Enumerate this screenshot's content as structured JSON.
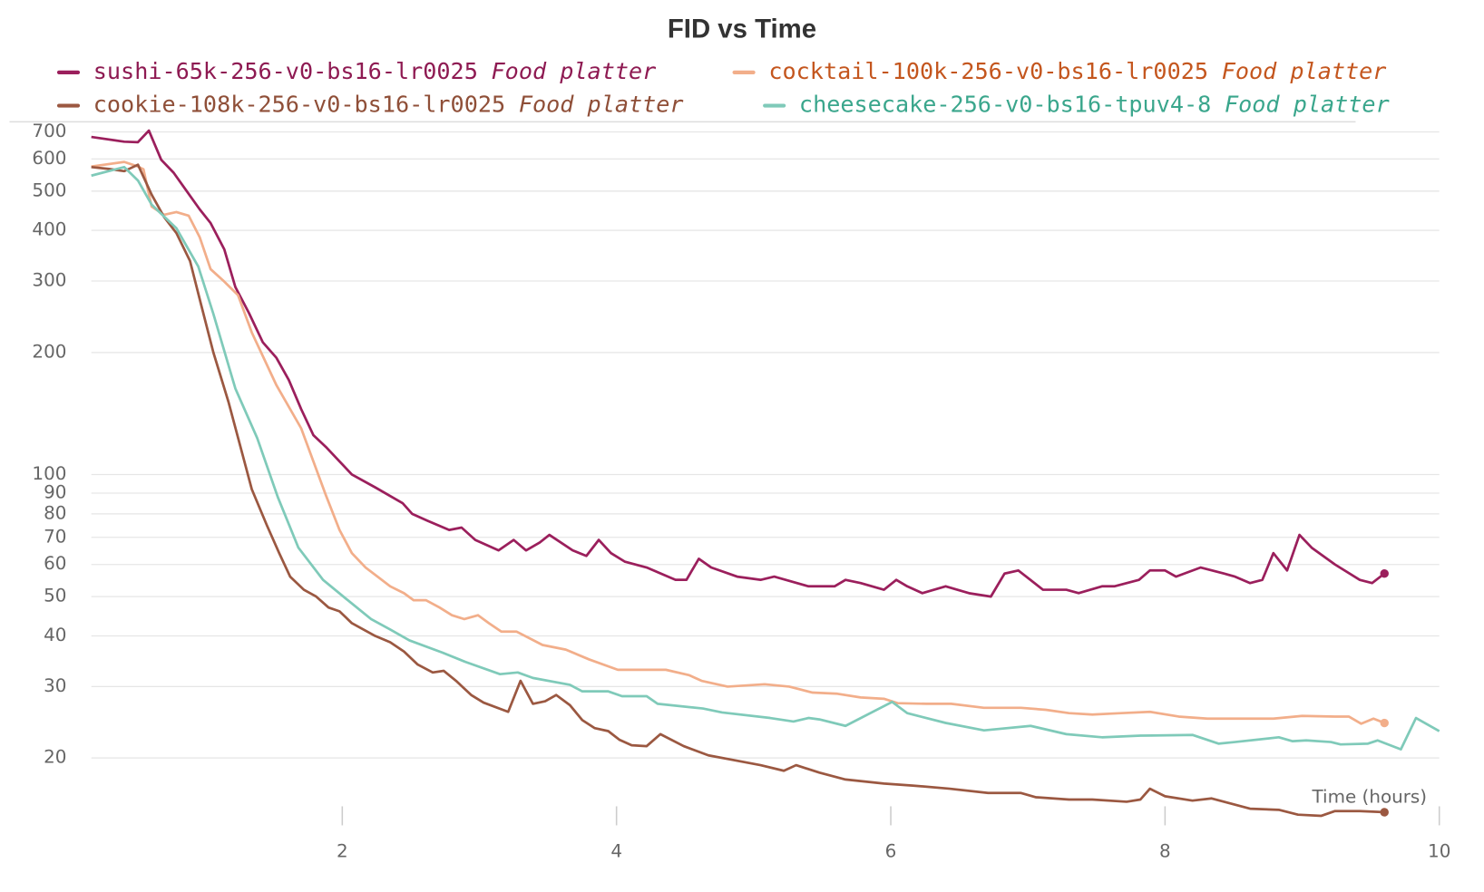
{
  "chart_data": {
    "type": "line",
    "title": "FID vs Time",
    "x_label": "Time (hours)",
    "log_y": true,
    "grid": true,
    "xlim": [
      0.17,
      10
    ],
    "xticks": [
      2,
      4,
      6,
      8,
      10
    ],
    "ylim": [
      13.5,
      741
    ],
    "yticks": [
      20,
      30,
      40,
      50,
      60,
      70,
      80,
      90,
      100,
      200,
      300,
      400,
      500,
      600,
      700
    ],
    "series": [
      {
        "name": "sushi-65k-256-v0-bs16-lr0025",
        "group": "Food platter",
        "color": "#9b1f5c",
        "label_color": "#8e1a52",
        "end_marker": true,
        "x": [
          0.17,
          0.41,
          0.51,
          0.59,
          0.68,
          0.77,
          0.86,
          0.96,
          1.04,
          1.14,
          1.22,
          1.32,
          1.42,
          1.52,
          1.61,
          1.7,
          1.79,
          1.88,
          2.07,
          2.24,
          2.44,
          2.51,
          2.62,
          2.78,
          2.87,
          2.97,
          3.14,
          3.25,
          3.34,
          3.44,
          3.51,
          3.68,
          3.78,
          3.87,
          3.96,
          4.06,
          4.22,
          4.43,
          4.51,
          4.6,
          4.69,
          4.88,
          5.05,
          5.15,
          5.4,
          5.59,
          5.67,
          5.78,
          5.95,
          6.04,
          6.12,
          6.23,
          6.4,
          6.57,
          6.73,
          6.83,
          6.93,
          7.11,
          7.28,
          7.37,
          7.54,
          7.63,
          7.81,
          7.89,
          8.0,
          8.08,
          8.26,
          8.43,
          8.51,
          8.62,
          8.71,
          8.79,
          8.89,
          8.98,
          9.07,
          9.24,
          9.42,
          9.51,
          9.6
        ],
        "values": [
          680,
          662,
          660,
          705,
          597,
          555,
          503,
          451,
          417,
          359,
          290,
          250,
          212,
          194,
          171,
          145,
          125,
          117,
          100,
          93,
          85,
          80,
          77,
          73,
          74,
          69,
          65,
          69,
          65,
          68,
          71,
          65,
          63,
          69,
          64,
          61,
          59,
          55,
          55,
          62,
          59,
          56,
          55,
          56,
          53,
          53,
          55,
          54,
          52,
          55,
          53,
          51,
          53,
          51,
          50,
          57,
          58,
          52,
          52,
          51,
          53,
          53,
          55,
          58,
          58,
          56,
          59,
          57,
          56,
          54,
          55,
          64,
          58,
          71,
          66,
          60,
          55,
          54,
          57
        ]
      },
      {
        "name": "cocktail-100k-256-v0-bs16-lr0025",
        "group": "Food platter",
        "color": "#f2ae8a",
        "label_color": "#c4561e",
        "end_marker": true,
        "x": [
          0.17,
          0.41,
          0.51,
          0.55,
          0.61,
          0.7,
          0.79,
          0.88,
          0.96,
          1.04,
          1.14,
          1.24,
          1.34,
          1.52,
          1.7,
          1.88,
          1.98,
          2.07,
          2.17,
          2.35,
          2.45,
          2.52,
          2.61,
          2.71,
          2.8,
          2.89,
          2.99,
          3.07,
          3.16,
          3.27,
          3.46,
          3.63,
          3.8,
          4.01,
          4.18,
          4.36,
          4.53,
          4.62,
          4.81,
          5.08,
          5.26,
          5.43,
          5.61,
          5.78,
          5.95,
          6.05,
          6.26,
          6.44,
          6.68,
          6.95,
          7.13,
          7.3,
          7.47,
          7.68,
          7.89,
          8.1,
          8.31,
          8.55,
          8.79,
          9.0,
          9.24,
          9.34,
          9.43,
          9.52,
          9.6
        ],
        "values": [
          575,
          590,
          575,
          566,
          458,
          437,
          444,
          435,
          385,
          321,
          299,
          277,
          224,
          166,
          130,
          89,
          73,
          64,
          59,
          53,
          51,
          49,
          49,
          47,
          45,
          44,
          45,
          43,
          41,
          41,
          38,
          37,
          35,
          33,
          33,
          33,
          32,
          31,
          30,
          30.4,
          30,
          29,
          28.8,
          28.2,
          28,
          27.3,
          27.2,
          27.2,
          26.6,
          26.6,
          26.3,
          25.8,
          25.6,
          25.8,
          26,
          25.3,
          25,
          25,
          25,
          25.4,
          25.3,
          25.3,
          24.3,
          25,
          24.4
        ]
      },
      {
        "name": "cookie-108k-256-v0-bs16-lr0025",
        "group": "Food platter",
        "color": "#9b5841",
        "label_color": "#8f4f38",
        "end_marker": true,
        "x": [
          0.17,
          0.3,
          0.41,
          0.51,
          0.61,
          0.7,
          0.79,
          0.89,
          0.97,
          1.06,
          1.17,
          1.34,
          1.45,
          1.54,
          1.62,
          1.72,
          1.81,
          1.9,
          1.98,
          2.07,
          2.24,
          2.35,
          2.45,
          2.55,
          2.66,
          2.74,
          2.83,
          2.94,
          3.03,
          3.21,
          3.3,
          3.39,
          3.48,
          3.56,
          3.66,
          3.75,
          3.84,
          3.94,
          4.02,
          4.11,
          4.22,
          4.32,
          4.49,
          4.67,
          4.84,
          5.05,
          5.22,
          5.31,
          5.48,
          5.67,
          5.95,
          6.16,
          6.43,
          6.71,
          6.95,
          7.06,
          7.3,
          7.47,
          7.72,
          7.82,
          7.89,
          8.0,
          8.2,
          8.34,
          8.62,
          8.83,
          8.97,
          9.14,
          9.24,
          9.42,
          9.6
        ],
        "values": [
          573,
          567,
          560,
          581,
          490,
          432,
          394,
          336,
          263,
          200,
          151,
          92,
          75,
          64,
          56,
          52,
          50,
          47,
          46,
          43,
          40,
          38.6,
          36.6,
          34,
          32.5,
          32.8,
          31,
          28.6,
          27.4,
          26,
          31,
          27.2,
          27.6,
          28.6,
          27,
          24.8,
          23.7,
          23.3,
          22.2,
          21.5,
          21.4,
          22.9,
          21.4,
          20.3,
          19.8,
          19.2,
          18.6,
          19.2,
          18.4,
          17.7,
          17.3,
          17.1,
          16.8,
          16.4,
          16.4,
          16,
          15.8,
          15.8,
          15.6,
          15.8,
          16.8,
          16.1,
          15.7,
          15.9,
          15,
          14.9,
          14.5,
          14.4,
          14.8,
          14.8,
          14.7
        ]
      },
      {
        "name": "cheesecake-256-v0-bs16-tpuv4-8",
        "group": "Food platter",
        "color": "#7fcab9",
        "label_color": "#3aa68c",
        "end_marker": false,
        "x": [
          0.17,
          0.41,
          0.51,
          0.61,
          0.79,
          0.95,
          1.06,
          1.22,
          1.38,
          1.53,
          1.68,
          1.86,
          2.04,
          2.21,
          2.35,
          2.49,
          2.73,
          2.9,
          3.15,
          3.28,
          3.39,
          3.66,
          3.75,
          3.94,
          4.04,
          4.22,
          4.3,
          4.63,
          4.77,
          5.12,
          5.29,
          5.4,
          5.48,
          5.67,
          6.01,
          6.12,
          6.4,
          6.68,
          7.02,
          7.28,
          7.54,
          7.82,
          8.2,
          8.39,
          8.51,
          8.83,
          8.93,
          9.03,
          9.21,
          9.28,
          9.48,
          9.55,
          9.72,
          9.83,
          10.0
        ],
        "values": [
          546,
          573,
          531,
          463,
          405,
          326,
          249,
          163,
          123,
          88,
          66,
          55,
          49,
          44,
          41.5,
          39,
          36.4,
          34.5,
          32.2,
          32.5,
          31.5,
          30.3,
          29.2,
          29.2,
          28.4,
          28.4,
          27.2,
          26.5,
          25.9,
          25.1,
          24.6,
          25.1,
          24.9,
          24,
          27.5,
          25.8,
          24.4,
          23.4,
          24,
          22.9,
          22.5,
          22.7,
          22.8,
          21.7,
          21.9,
          22.5,
          22,
          22.1,
          21.9,
          21.6,
          21.7,
          22.1,
          21,
          25.1,
          23.3
        ]
      }
    ]
  }
}
